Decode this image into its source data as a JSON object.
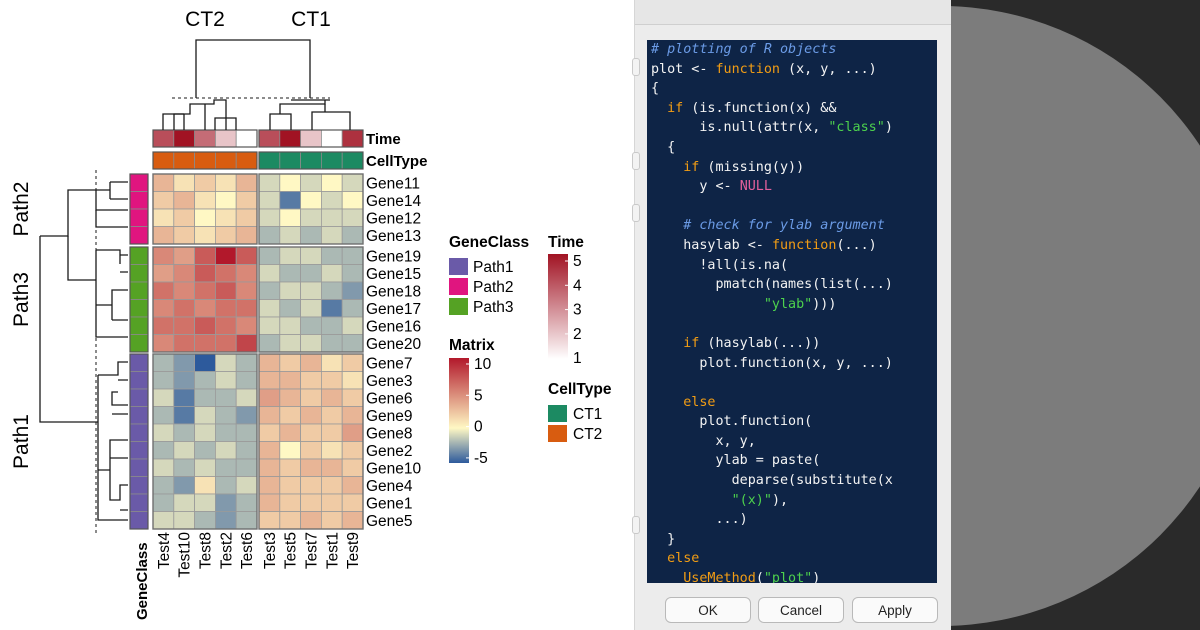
{
  "chart_data": {
    "type": "heatmap",
    "columns": [
      "Test4",
      "Test10",
      "Test8",
      "Test2",
      "Test6",
      "Test3",
      "Test5",
      "Test7",
      "Test1",
      "Test9"
    ],
    "column_splits": [
      "CT2",
      "CT1"
    ],
    "rows": [
      "Gene11",
      "Gene14",
      "Gene12",
      "Gene13",
      "Gene19",
      "Gene15",
      "Gene18",
      "Gene17",
      "Gene16",
      "Gene20",
      "Gene7",
      "Gene3",
      "Gene6",
      "Gene9",
      "Gene8",
      "Gene2",
      "Gene10",
      "Gene4",
      "Gene1",
      "Gene5"
    ],
    "row_splits": [
      "Path2",
      "Path3",
      "Path1"
    ],
    "row_gene_class": [
      "Path2",
      "Path2",
      "Path2",
      "Path2",
      "Path3",
      "Path3",
      "Path3",
      "Path3",
      "Path3",
      "Path3",
      "Path1",
      "Path1",
      "Path1",
      "Path1",
      "Path1",
      "Path1",
      "Path1",
      "Path1",
      "Path1",
      "Path1"
    ],
    "column_time": [
      4,
      5,
      3.5,
      2,
      1,
      4,
      5,
      2,
      1,
      4.5
    ],
    "column_celltype": [
      "CT2",
      "CT2",
      "CT2",
      "CT2",
      "CT2",
      "CT1",
      "CT1",
      "CT1",
      "CT1",
      "CT1"
    ],
    "values": [
      [
        3,
        1,
        2,
        1,
        3,
        -1,
        0,
        -1,
        0,
        -1
      ],
      [
        2,
        3,
        1,
        0,
        2,
        -1,
        -4,
        0,
        -1,
        0
      ],
      [
        1,
        2,
        0,
        1,
        2,
        -1,
        0,
        -1,
        -1,
        -1
      ],
      [
        3,
        2,
        1,
        2,
        3,
        -2,
        -1,
        -2,
        -1,
        -2
      ],
      [
        5,
        4,
        7,
        10,
        7,
        -2,
        -1,
        -1,
        -2,
        -2
      ],
      [
        4,
        5,
        7,
        6,
        5,
        -1,
        -2,
        -2,
        -1,
        -2
      ],
      [
        6,
        5,
        6,
        7,
        5,
        -2,
        -1,
        -1,
        -2,
        -3
      ],
      [
        5,
        6,
        5,
        6,
        6,
        -1,
        -2,
        -1,
        -4,
        -2
      ],
      [
        6,
        6,
        7,
        6,
        5,
        -1,
        -1,
        -2,
        -2,
        -1
      ],
      [
        5,
        6,
        6,
        6,
        8,
        -2,
        -1,
        -1,
        -2,
        -2
      ],
      [
        -2,
        -3,
        -5,
        -1,
        -2,
        3,
        2,
        3,
        1,
        2
      ],
      [
        -2,
        -3,
        -2,
        -1,
        -2,
        3,
        3,
        2,
        2,
        1
      ],
      [
        -1,
        -4,
        -2,
        -2,
        -1,
        4,
        3,
        2,
        3,
        2
      ],
      [
        -2,
        -4,
        -1,
        -2,
        -3,
        3,
        2,
        3,
        2,
        3
      ],
      [
        -1,
        -2,
        -1,
        -2,
        -2,
        2,
        3,
        2,
        2,
        4
      ],
      [
        -2,
        -1,
        -2,
        -1,
        -2,
        3,
        0,
        2,
        1,
        2
      ],
      [
        -1,
        -2,
        -1,
        -2,
        -2,
        3,
        2,
        3,
        3,
        2
      ],
      [
        -2,
        -3,
        1,
        -2,
        -1,
        3,
        2,
        2,
        2,
        3
      ],
      [
        -2,
        -1,
        -1,
        -3,
        -2,
        3,
        2,
        2,
        2,
        2
      ],
      [
        -1,
        -1,
        -2,
        -3,
        -2,
        2,
        2,
        3,
        2,
        3
      ]
    ],
    "annotation_labels": {
      "time": "Time",
      "celltype": "CellType",
      "geneclass": "GeneClass"
    },
    "legends": {
      "geneclass": {
        "title": "GeneClass",
        "items": [
          {
            "label": "Path1",
            "color": "#6a5aa8"
          },
          {
            "label": "Path2",
            "color": "#e0157f"
          },
          {
            "label": "Path3",
            "color": "#55a224"
          }
        ]
      },
      "time": {
        "title": "Time",
        "ticks": [
          "5",
          "4",
          "3",
          "2",
          "1"
        ],
        "low_color": "#ffffff",
        "high_color": "#a11323"
      },
      "matrix": {
        "title": "Matrix",
        "ticks": [
          "10",
          "5",
          "0",
          "-5"
        ],
        "colors": [
          "#2d5a9c",
          "#fff8c4",
          "#b2182b"
        ]
      },
      "celltype": {
        "title": "CellType",
        "items": [
          {
            "label": "CT1",
            "color": "#1c8a62"
          },
          {
            "label": "CT2",
            "color": "#d85c10"
          }
        ]
      }
    },
    "value_range": [
      -5,
      10
    ]
  },
  "dialog": {
    "buttons": {
      "ok": "OK",
      "cancel": "Cancel",
      "apply": "Apply"
    },
    "code_lines": [
      [
        [
          "c",
          "# plotting of R objects"
        ]
      ],
      [
        [
          "t",
          "plot <- "
        ],
        [
          "k",
          "function"
        ],
        [
          "t",
          " (x, y, ...)"
        ]
      ],
      [
        [
          "t",
          "{"
        ]
      ],
      [
        [
          "t",
          "  "
        ],
        [
          "k",
          "if"
        ],
        [
          "t",
          " (is.function(x) &&"
        ]
      ],
      [
        [
          "t",
          "      is.null(attr(x, "
        ],
        [
          "s",
          "\"class\""
        ],
        [
          "t",
          ")"
        ]
      ],
      [
        [
          "t",
          "  {"
        ]
      ],
      [
        [
          "t",
          "    "
        ],
        [
          "k",
          "if"
        ],
        [
          "t",
          " (missing(y))"
        ]
      ],
      [
        [
          "t",
          "      y <- "
        ],
        [
          "n",
          "NULL"
        ]
      ],
      [
        [
          "t",
          ""
        ]
      ],
      [
        [
          "c",
          "    # check for ylab argument"
        ]
      ],
      [
        [
          "t",
          "    hasylab <- "
        ],
        [
          "k",
          "function"
        ],
        [
          "t",
          "(...)"
        ]
      ],
      [
        [
          "t",
          "      !all(is.na("
        ]
      ],
      [
        [
          "t",
          "        pmatch(names(list(...)"
        ]
      ],
      [
        [
          "t",
          "              "
        ],
        [
          "s",
          "\"ylab\""
        ],
        [
          "t",
          ")))"
        ]
      ],
      [
        [
          "t",
          ""
        ]
      ],
      [
        [
          "t",
          "    "
        ],
        [
          "k",
          "if"
        ],
        [
          "t",
          " (hasylab(...))"
        ]
      ],
      [
        [
          "t",
          "      plot.function(x, y, ...)"
        ]
      ],
      [
        [
          "t",
          ""
        ]
      ],
      [
        [
          "t",
          "    "
        ],
        [
          "k",
          "else"
        ]
      ],
      [
        [
          "t",
          "      plot.function("
        ]
      ],
      [
        [
          "t",
          "        x, y,"
        ]
      ],
      [
        [
          "t",
          "        ylab = paste("
        ]
      ],
      [
        [
          "t",
          "          deparse(substitute(x"
        ]
      ],
      [
        [
          "t",
          "          "
        ],
        [
          "s",
          "\"(x)\""
        ],
        [
          "t",
          "),"
        ]
      ],
      [
        [
          "t",
          "        ...)"
        ]
      ],
      [
        [
          "t",
          "  }"
        ]
      ],
      [
        [
          "t",
          "  "
        ],
        [
          "k",
          "else"
        ]
      ],
      [
        [
          "t",
          "    "
        ],
        [
          "k",
          "UseMethod"
        ],
        [
          "t",
          "("
        ],
        [
          "s",
          "\"plot\""
        ],
        [
          "t",
          ")"
        ]
      ]
    ]
  }
}
